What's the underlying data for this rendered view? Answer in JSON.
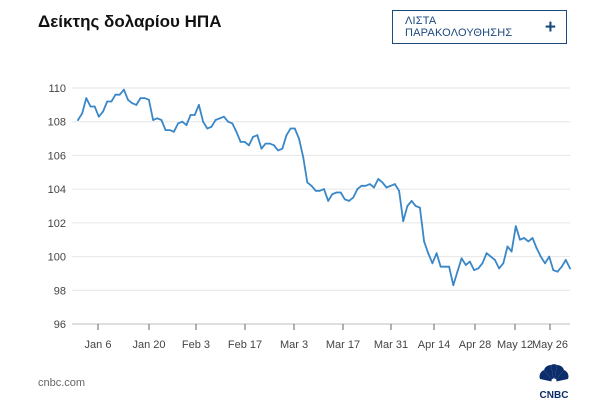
{
  "header": {
    "title": "Δείκτης δολαρίου ΗΠΑ",
    "watchlist_label": "ΛΙΣΤΑ ΠΑΡΑΚΟΛΟΥΘΗΣΗΣ",
    "watchlist_icon": "plus-icon"
  },
  "footer": {
    "source": "cnbc.com",
    "logo_label": "CNBC",
    "logo_icon": "cnbc-peacock-icon"
  },
  "colors": {
    "line": "#3a87c8",
    "grid": "#e6e6e6",
    "axis": "#444444",
    "button_border": "#1c4a7e"
  },
  "chart_data": {
    "type": "line",
    "title": "Δείκτης δολαρίου ΗΠΑ",
    "xlabel": "",
    "ylabel": "",
    "ylim": [
      96,
      110
    ],
    "yticks": [
      96,
      98,
      100,
      102,
      104,
      106,
      108,
      110
    ],
    "grid": "horizontal",
    "x_tick_labels": [
      "Jan 6",
      "Jan 20",
      "Feb 3",
      "Feb 17",
      "Mar 3",
      "Mar 17",
      "Mar 31",
      "Apr 14",
      "Apr 28",
      "May 12",
      "May 26"
    ],
    "series": [
      {
        "values": [
          108.1,
          108.5,
          109.4,
          108.9,
          108.9,
          108.3,
          108.6,
          109.2,
          109.2,
          109.6,
          109.6,
          109.9,
          109.3,
          109.1,
          109.0,
          109.4,
          109.4,
          109.3,
          108.1,
          108.2,
          108.1,
          107.5,
          107.5,
          107.4,
          107.9,
          108.0,
          107.8,
          108.4,
          108.4,
          109.0,
          108.0,
          107.6,
          107.7,
          108.1,
          108.2,
          108.3,
          108.0,
          107.9,
          107.4,
          106.8,
          106.8,
          106.6,
          107.1,
          107.2,
          106.4,
          106.7,
          106.7,
          106.6,
          106.3,
          106.4,
          107.2,
          107.6,
          107.6,
          107.0,
          105.9,
          104.4,
          104.2,
          103.9,
          103.9,
          104.0,
          103.3,
          103.7,
          103.8,
          103.8,
          103.4,
          103.3,
          103.5,
          104.0,
          104.2,
          104.2,
          104.3,
          104.1,
          104.6,
          104.4,
          104.1,
          104.2,
          104.3,
          103.9,
          102.1,
          103.0,
          103.3,
          103.0,
          102.9,
          100.9,
          100.2,
          99.6,
          100.2,
          99.4,
          99.4,
          99.4,
          98.3,
          99.1,
          99.9,
          99.5,
          99.7,
          99.2,
          99.3,
          99.6,
          100.2,
          100.0,
          99.8,
          99.3,
          99.6,
          100.6,
          100.3,
          101.8,
          101.0,
          101.1,
          100.9,
          101.1,
          100.5,
          100.0,
          99.6,
          100.0,
          99.2,
          99.1,
          99.4,
          99.8,
          99.3
        ]
      }
    ]
  }
}
